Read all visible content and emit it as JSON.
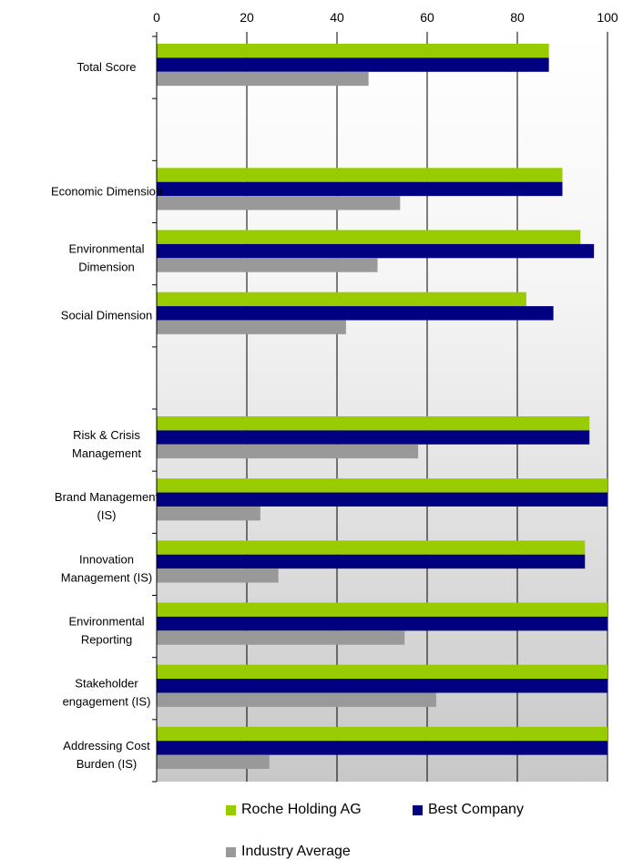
{
  "chart_data": {
    "type": "bar",
    "orientation": "horizontal",
    "xlim": [
      0,
      100
    ],
    "xticks": [
      "0",
      "20",
      "40",
      "60",
      "80",
      "100"
    ],
    "grid": true,
    "legend_placement": "bottom",
    "categories": [
      [
        "Total Score"
      ],
      [],
      [
        "Economic Dimension"
      ],
      [
        "Environmental",
        "Dimension"
      ],
      [
        "Social Dimension"
      ],
      [],
      [
        "Risk & Crisis",
        "Management"
      ],
      [
        "Brand Management",
        "(IS)"
      ],
      [
        "Innovation",
        "Management (IS)"
      ],
      [
        "Environmental",
        "Reporting"
      ],
      [
        "Stakeholder",
        "engagement (IS)"
      ],
      [
        "Addressing Cost",
        "Burden (IS)"
      ]
    ],
    "series": [
      {
        "name": "Roche Holding AG",
        "color": "#99cc00",
        "values": [
          87,
          null,
          90,
          94,
          82,
          null,
          96,
          100,
          95,
          100,
          100,
          100
        ]
      },
      {
        "name": "Best Company",
        "color": "#000080",
        "values": [
          87,
          null,
          90,
          97,
          88,
          null,
          96,
          100,
          95,
          100,
          100,
          100
        ]
      },
      {
        "name": "Industry Average",
        "color": "#999999",
        "values": [
          47,
          null,
          54,
          49,
          42,
          null,
          58,
          23,
          27,
          55,
          62,
          25
        ]
      }
    ]
  }
}
